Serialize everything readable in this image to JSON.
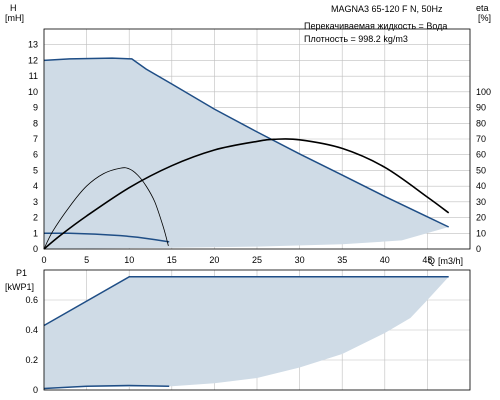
{
  "chart_data": [
    {
      "type": "line",
      "title": "MAGNA3 65-120 F N, 50Hz",
      "annotations": [
        "Перекачиваемая жидкость = Вода",
        "Плотность = 998.2 kg/m3"
      ],
      "ylabel": "H",
      "yunit": "[mH]",
      "y2label": "eta",
      "y2unit": "[%]",
      "xlabel": "Q",
      "xunit": "[m3/h]",
      "xlim": [
        0,
        50
      ],
      "ylim": [
        0,
        14
      ],
      "y2lim": [
        0,
        140
      ],
      "x_ticks": [
        0,
        5,
        10,
        15,
        20,
        25,
        30,
        35,
        40,
        45
      ],
      "y_ticks": [
        0,
        1,
        2,
        3,
        4,
        5,
        6,
        7,
        8,
        9,
        10,
        11,
        12,
        13
      ],
      "y2_ticks": [
        0,
        10,
        20,
        30,
        40,
        50,
        60,
        70,
        80,
        90,
        100
      ],
      "grid": true,
      "operating_area": [
        [
          0,
          0
        ],
        [
          0,
          12
        ],
        [
          3,
          12.1
        ],
        [
          8,
          12.15
        ],
        [
          10.3,
          12.1
        ],
        [
          12,
          11.45
        ],
        [
          20,
          8.9
        ],
        [
          30,
          6.05
        ],
        [
          40,
          3.35
        ],
        [
          47.5,
          1.4
        ],
        [
          42,
          0.55
        ],
        [
          35,
          0.3
        ],
        [
          25,
          0.15
        ],
        [
          15,
          0.08
        ],
        [
          0,
          0
        ]
      ],
      "series": [
        {
          "style": "max_curve",
          "points": [
            [
              0,
              12
            ],
            [
              3,
              12.1
            ],
            [
              8,
              12.15
            ],
            [
              10.3,
              12.1
            ],
            [
              12,
              11.45
            ],
            [
              15,
              10.5
            ],
            [
              20,
              8.9
            ],
            [
              25,
              7.45
            ],
            [
              30,
              6.05
            ],
            [
              35,
              4.7
            ],
            [
              40,
              3.35
            ],
            [
              45,
              2.05
            ],
            [
              47.5,
              1.4
            ]
          ]
        },
        {
          "style": "min_curve",
          "points": [
            [
              0,
              1.0
            ],
            [
              3,
              1.0
            ],
            [
              6,
              0.95
            ],
            [
              9,
              0.85
            ],
            [
              11,
              0.75
            ],
            [
              13,
              0.6
            ],
            [
              14.7,
              0.45
            ]
          ]
        },
        {
          "style": "eta_max",
          "points": [
            [
              0,
              0
            ],
            [
              2,
              9
            ],
            [
              5,
              21
            ],
            [
              10,
              39
            ],
            [
              15,
              53
            ],
            [
              20,
              63
            ],
            [
              25,
              68.5
            ],
            [
              27,
              69.8
            ],
            [
              30,
              69.5
            ],
            [
              35,
              64
            ],
            [
              40,
              52
            ],
            [
              45,
              33
            ],
            [
              47.5,
              23
            ]
          ]
        },
        {
          "style": "eta_min",
          "points": [
            [
              0,
              0
            ],
            [
              1,
              11
            ],
            [
              3,
              27
            ],
            [
              5,
              40
            ],
            [
              7,
              48
            ],
            [
              9,
              51.5
            ],
            [
              10,
              51
            ],
            [
              11,
              47
            ],
            [
              12,
              40
            ],
            [
              13,
              30
            ],
            [
              14,
              14
            ],
            [
              14.6,
              2
            ]
          ]
        }
      ]
    },
    {
      "type": "line",
      "ylabel": "P1",
      "yunit": "[kWP1]",
      "xlim": [
        0,
        50
      ],
      "ylim": [
        0,
        0.8
      ],
      "x_ticks": [
        0,
        5,
        10,
        15,
        20,
        25,
        30,
        35,
        40,
        45
      ],
      "y_ticks": [
        0,
        0.2,
        0.4,
        0.6
      ],
      "grid": true,
      "operating_area": [
        [
          0,
          0
        ],
        [
          0,
          0.43
        ],
        [
          10,
          0.755
        ],
        [
          47.5,
          0.755
        ],
        [
          47.5,
          0
        ],
        [
          0,
          0
        ]
      ],
      "area_cutout": [
        [
          47.5,
          0.755
        ],
        [
          45,
          0.6
        ],
        [
          43,
          0.48
        ],
        [
          40,
          0.38
        ],
        [
          35,
          0.24
        ],
        [
          30,
          0.15
        ],
        [
          25,
          0.08
        ],
        [
          20,
          0.045
        ],
        [
          15,
          0.025
        ],
        [
          10,
          0.02
        ],
        [
          5,
          0.02
        ],
        [
          0,
          0.01
        ],
        [
          0,
          0
        ],
        [
          47.5,
          0
        ]
      ],
      "series": [
        {
          "style": "max_curve",
          "points": [
            [
              0,
              0.43
            ],
            [
              10,
              0.755
            ],
            [
              47.5,
              0.755
            ]
          ]
        },
        {
          "style": "min_curve",
          "points": [
            [
              0,
              0.01
            ],
            [
              5,
              0.025
            ],
            [
              10,
              0.03
            ],
            [
              14.7,
              0.025
            ]
          ]
        }
      ]
    }
  ]
}
